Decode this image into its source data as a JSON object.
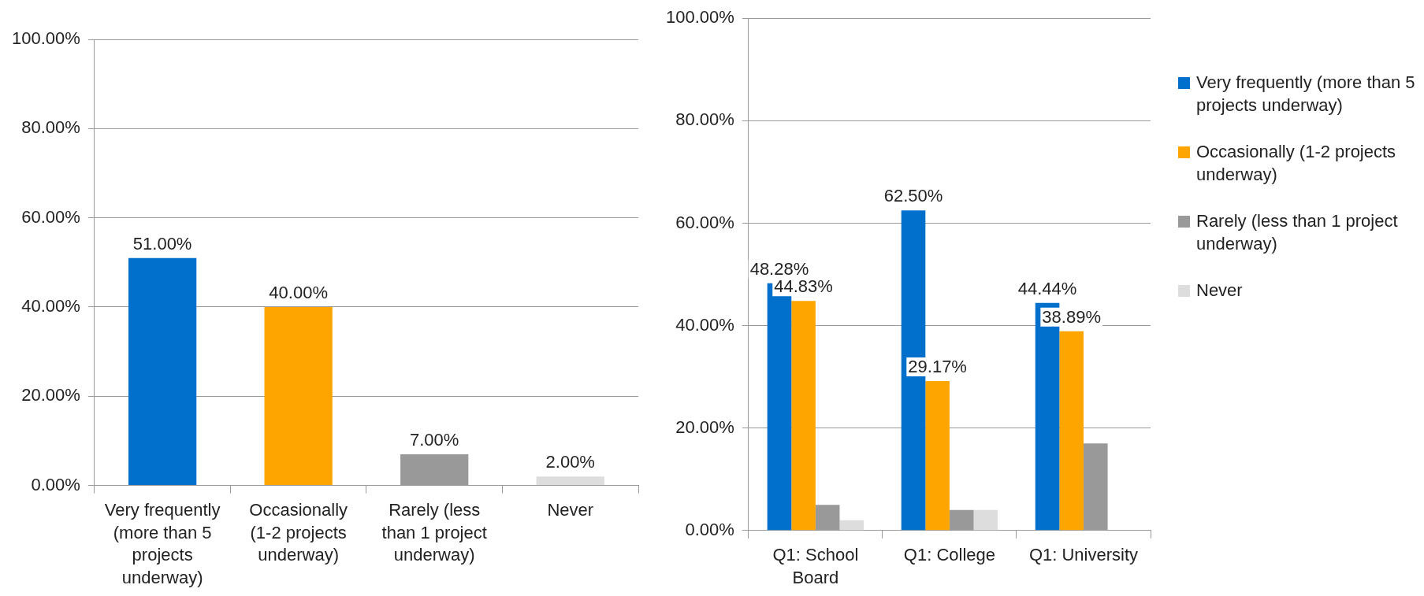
{
  "chart_data": [
    {
      "type": "bar",
      "categories": [
        "Very frequently (more than 5 projects underway)",
        "Occasionally (1-2 projects underway)",
        "Rarely (less than 1 project underway)",
        "Never"
      ],
      "values": [
        51,
        40,
        7,
        2
      ],
      "colors": [
        "#0070cc",
        "#ffa500",
        "#999999",
        "#dddddd"
      ],
      "value_labels": [
        "51.00%",
        "40.00%",
        "7.00%",
        "2.00%"
      ],
      "ylim": [
        0,
        100
      ],
      "yticks": [
        {
          "value": 0,
          "label": "0.00%"
        },
        {
          "value": 20,
          "label": "20.00%"
        },
        {
          "value": 40,
          "label": "40.00%"
        },
        {
          "value": 60,
          "label": "60.00%"
        },
        {
          "value": 80,
          "label": "80.00%"
        },
        {
          "value": 100,
          "label": "100.00%"
        }
      ],
      "grid": "y",
      "legend": false
    },
    {
      "type": "bar",
      "categories": [
        "Q1: School Board",
        "Q1: College",
        "Q1: University"
      ],
      "series": [
        {
          "name": "Very frequently (more than 5 projects underway)",
          "color": "#0070cc",
          "values": [
            48.28,
            62.5,
            44.44
          ],
          "value_labels": [
            "48.28%",
            "62.50%",
            "44.44%"
          ]
        },
        {
          "name": "Occasionally (1-2 projects underway)",
          "color": "#ffa500",
          "values": [
            44.83,
            29.17,
            38.89
          ],
          "value_labels": [
            "44.83%",
            "29.17%",
            "38.89%"
          ]
        },
        {
          "name": "Rarely (less than 1 project underway)",
          "color": "#999999",
          "values": [
            5,
            4,
            17
          ]
        },
        {
          "name": "Never",
          "color": "#dddddd",
          "values": [
            2,
            4,
            0
          ]
        }
      ],
      "ylim": [
        0,
        100
      ],
      "yticks": [
        {
          "value": 0,
          "label": "0.00%"
        },
        {
          "value": 20,
          "label": "20.00%"
        },
        {
          "value": 40,
          "label": "40.00%"
        },
        {
          "value": 60,
          "label": "60.00%"
        },
        {
          "value": 80,
          "label": "80.00%"
        },
        {
          "value": 100,
          "label": "100.00%"
        }
      ],
      "grid": "y",
      "legend": "right"
    }
  ]
}
